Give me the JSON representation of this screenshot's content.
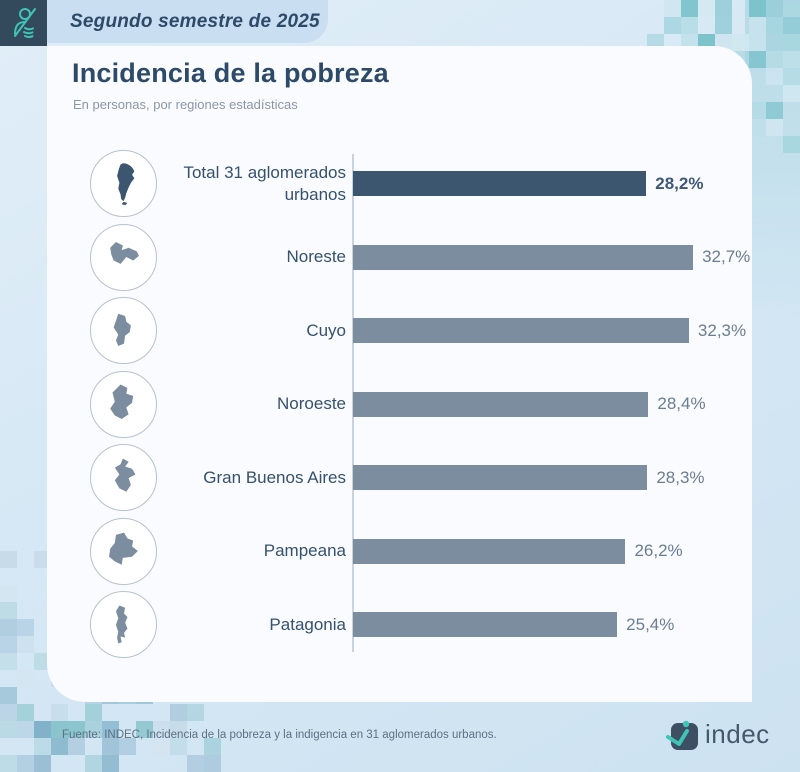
{
  "header": {
    "period_label": "Segundo semestre de 2025",
    "brand_icon": "indec-person-pictogram-icon"
  },
  "card": {
    "title": "Incidencia de la pobreza",
    "subtitle": "En personas, por regiones estadísticas"
  },
  "chart_data": {
    "type": "bar",
    "orientation": "horizontal",
    "title": "Incidencia de la pobreza",
    "subtitle": "En personas, por regiones estadísticas",
    "unit": "percent",
    "xlim": [
      0,
      35
    ],
    "grid": false,
    "legend": "none",
    "categories": [
      "Total 31 aglomerados urbanos",
      "Noreste",
      "Cuyo",
      "Noroeste",
      "Gran Buenos Aires",
      "Pampeana",
      "Patagonia"
    ],
    "values": [
      28.2,
      32.7,
      32.3,
      28.4,
      28.3,
      26.2,
      25.4
    ],
    "value_labels": [
      "28,2%",
      "32,7%",
      "32,3%",
      "28,4%",
      "28,3%",
      "26,2%",
      "25,4%"
    ],
    "highlight_index": 0,
    "icons": [
      "map-argentina-total-icon",
      "map-region-noreste-icon",
      "map-region-cuyo-icon",
      "map-region-noroeste-icon",
      "map-region-gran-buenos-aires-icon",
      "map-region-pampeana-icon",
      "map-region-patagonia-icon"
    ]
  },
  "footer": {
    "source": "Fuente: INDEC, Incidencia de la pobreza y la indigencia en 31 aglomerados urbanos.",
    "logo_text": "indec"
  },
  "colors": {
    "bar_highlight": "#3c566f",
    "bar_default": "#7d8da0",
    "accent_teal": "#3fc4b5",
    "title_navy": "#2d4a68",
    "background": "#d5e7f4",
    "card": "#f9fbfe"
  }
}
